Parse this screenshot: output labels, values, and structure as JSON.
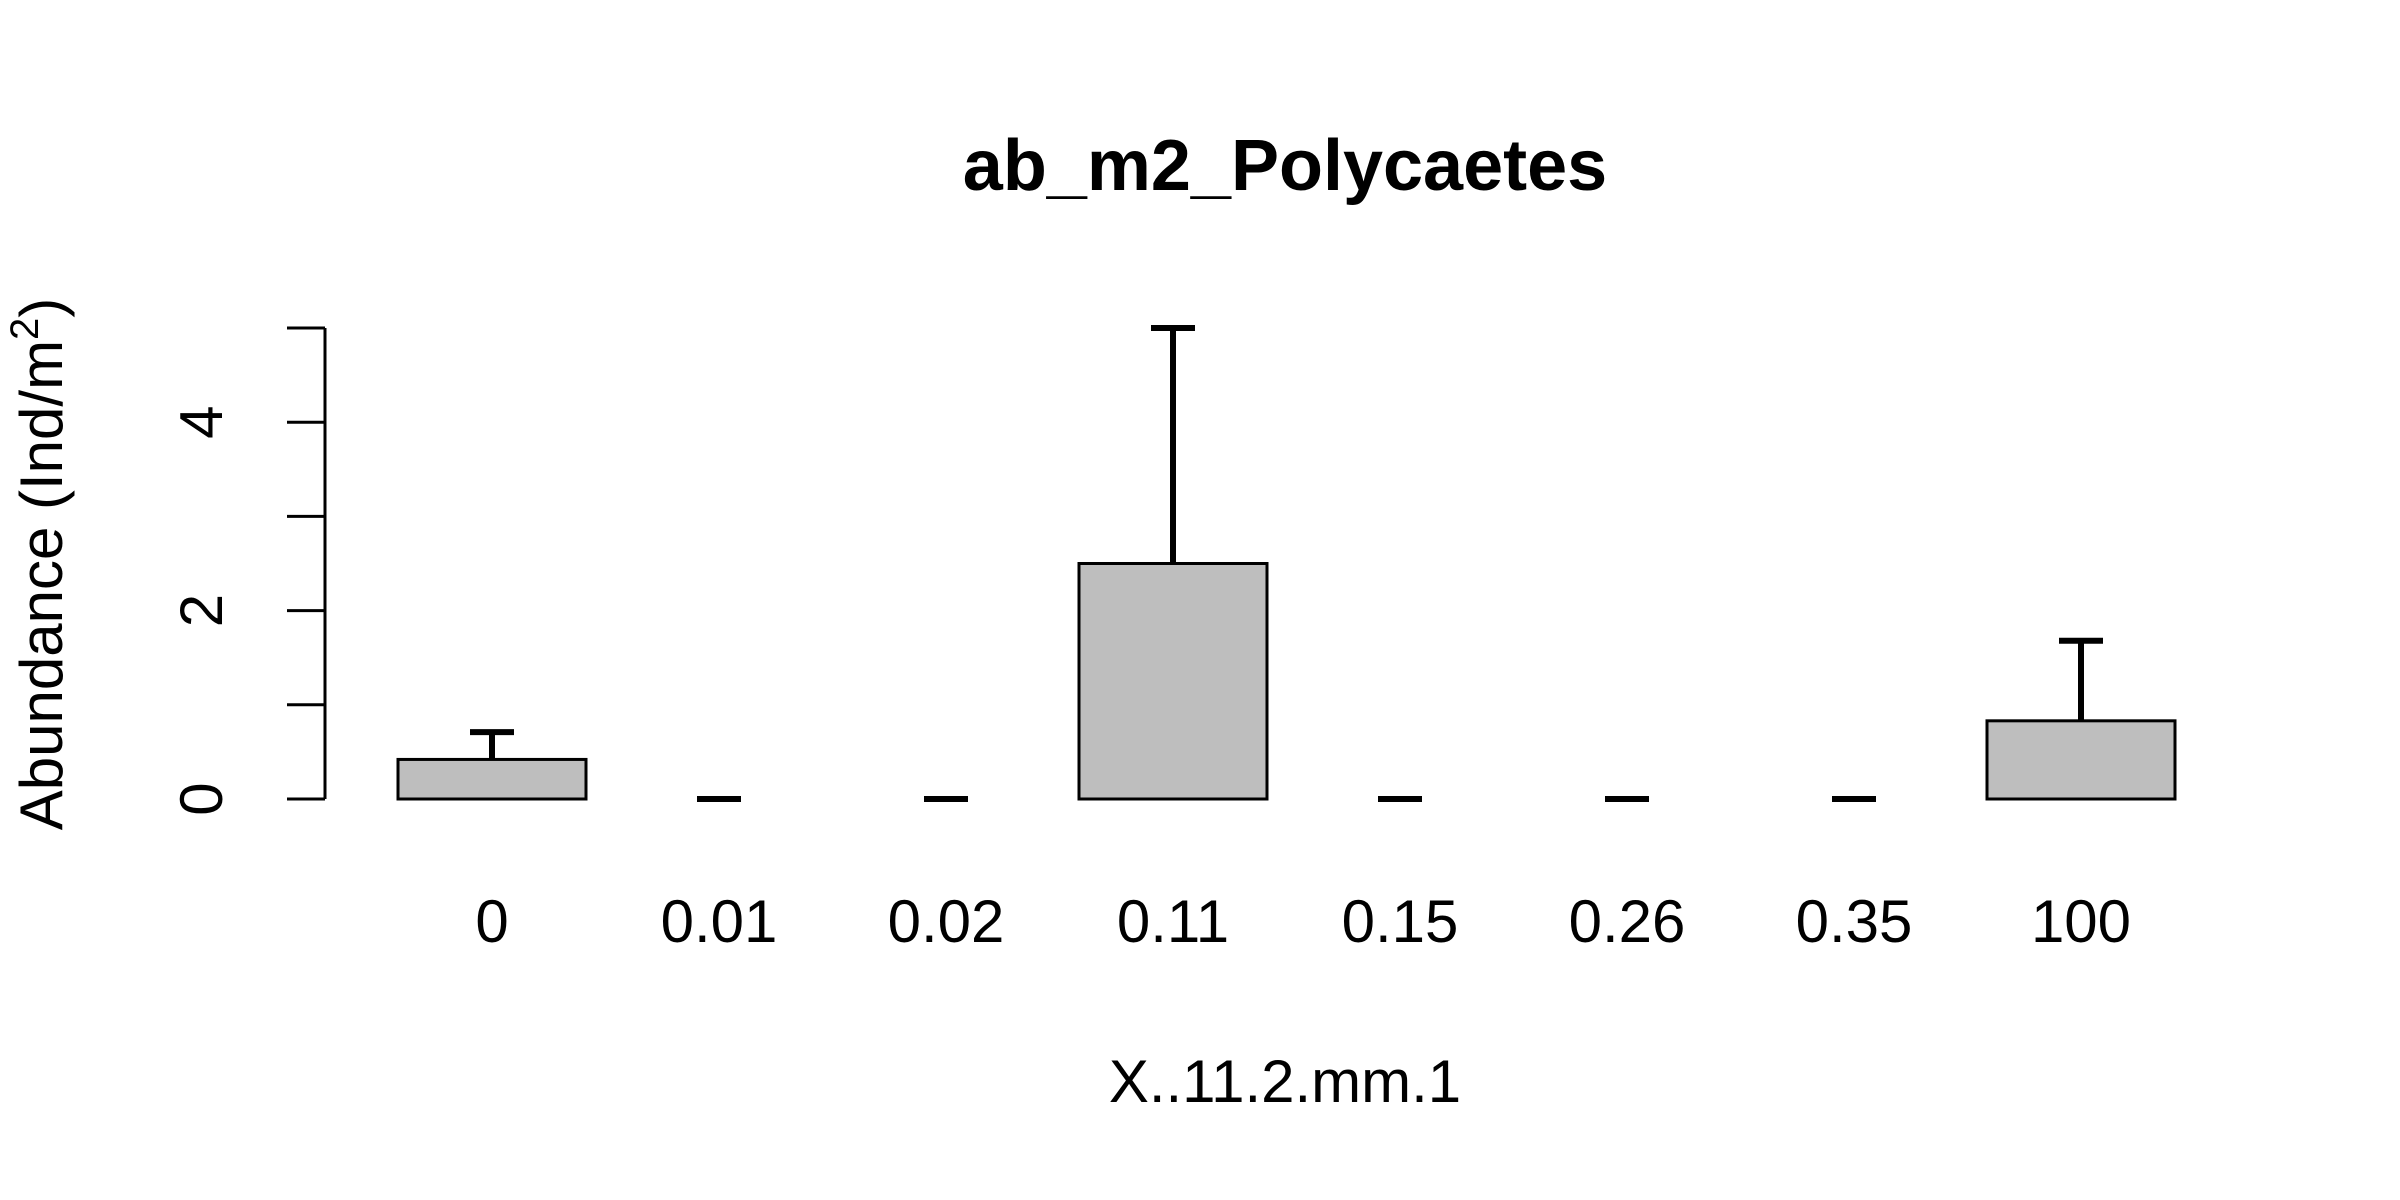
{
  "chart_data": {
    "type": "bar",
    "title": "ab_m2_Polycaetes",
    "xlabel": "X..11.2.mm.1",
    "ylabel": "Abundance (Ind/m",
    "ylabel_superscript": "2",
    "ylabel_close": ")",
    "categories": [
      "0",
      "0.01",
      "0.02",
      "0.11",
      "0.15",
      "0.26",
      "0.35",
      "100"
    ],
    "series": [
      {
        "values": [
          0.42,
          0,
          0,
          2.5,
          0,
          0,
          0,
          0.83
        ],
        "error_upper": [
          0.71,
          0,
          0,
          5.0,
          0,
          0,
          0,
          1.68
        ]
      }
    ],
    "ylim": [
      0,
      5
    ],
    "y_ticks": [
      0,
      1,
      2,
      3,
      4,
      5
    ],
    "y_tick_labels": [
      "0",
      "",
      "2",
      "",
      "4",
      ""
    ],
    "bar_color": "#bebebe",
    "grid": false,
    "legend": "none"
  }
}
